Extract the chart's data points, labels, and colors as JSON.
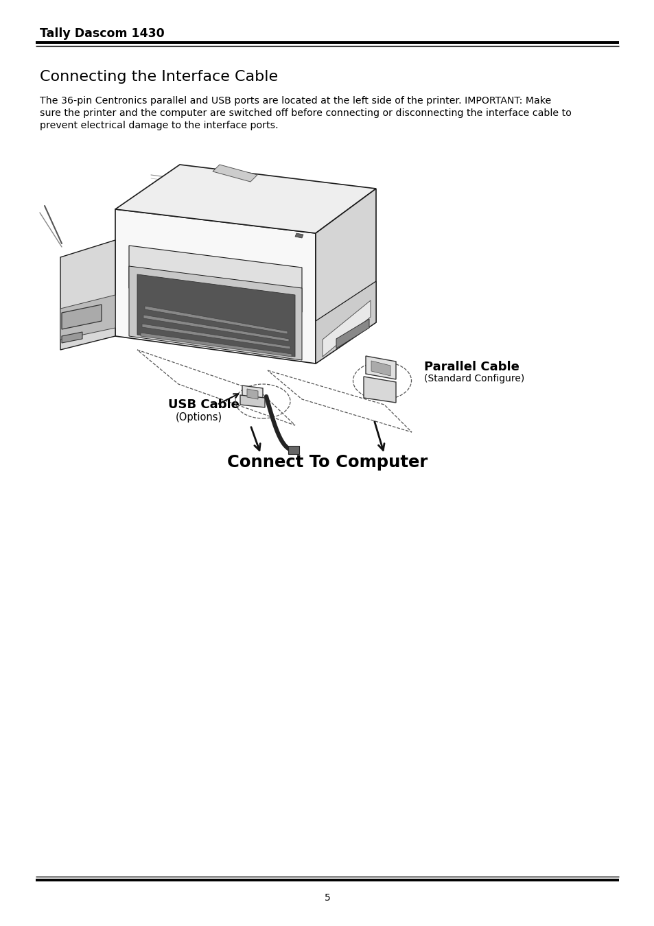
{
  "title": "Tally Dascom 1430",
  "section_heading": "Connecting the Interface Cable",
  "body_line1": "The 36-pin Centronics parallel and USB ports are located at the left side of the printer. IMPORTANT: Make",
  "body_line2": "sure the printer and the computer are switched off before connecting or disconnecting the interface cable to",
  "body_line3": "prevent electrical damage to the interface ports.",
  "page_number": "5",
  "background_color": "#ffffff",
  "text_color": "#000000",
  "title_fontsize": 12.5,
  "heading_fontsize": 16,
  "body_fontsize": 10.2,
  "page_num_fontsize": 10,
  "usb_label": "USB Cable",
  "usb_sublabel": "(Options)",
  "parallel_label": "Parallel Cable",
  "parallel_sublabel": "(Standard Configure)",
  "connect_label": "Connect To Computer",
  "diagram_image_path": null
}
